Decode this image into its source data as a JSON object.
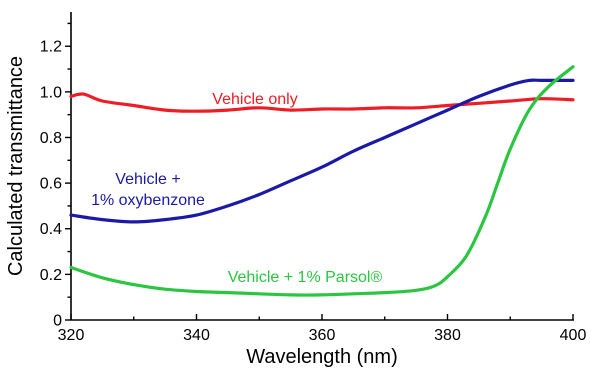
{
  "chart_data": {
    "type": "line",
    "title": "",
    "xlabel": "Wavelength (nm)",
    "ylabel": "Calculated transmittance",
    "xlim": [
      320,
      400
    ],
    "ylim": [
      0,
      1.35
    ],
    "x_ticks": [
      320,
      340,
      360,
      380,
      400
    ],
    "y_ticks": [
      0,
      0.2,
      0.4,
      0.6,
      0.8,
      1.0,
      1.2
    ],
    "x_tick_labels": [
      "320",
      "340",
      "360",
      "380",
      "400"
    ],
    "y_tick_labels": [
      "0",
      "0.2",
      "0.4",
      "0.6",
      "0.8",
      "1.0",
      "1.2"
    ],
    "grid": false,
    "legend": "none",
    "series": [
      {
        "label_lines": [
          "Vehicle only"
        ],
        "color": "#ee1c24",
        "x": [
          320,
          322,
          325,
          330,
          335,
          340,
          345,
          350,
          355,
          360,
          365,
          370,
          375,
          380,
          385,
          390,
          395,
          400
        ],
        "y": [
          0.98,
          0.99,
          0.96,
          0.94,
          0.92,
          0.915,
          0.92,
          0.93,
          0.92,
          0.925,
          0.925,
          0.93,
          0.93,
          0.94,
          0.95,
          0.96,
          0.97,
          0.965
        ]
      },
      {
        "label_lines": [
          "Vehicle +",
          "1% oxybenzone"
        ],
        "color": "#1a1aa6",
        "x": [
          320,
          325,
          330,
          335,
          340,
          345,
          350,
          355,
          360,
          365,
          370,
          375,
          380,
          385,
          390,
          393,
          395,
          400
        ],
        "y": [
          0.46,
          0.44,
          0.43,
          0.44,
          0.46,
          0.5,
          0.55,
          0.61,
          0.67,
          0.74,
          0.8,
          0.86,
          0.92,
          0.98,
          1.03,
          1.05,
          1.05,
          1.05
        ]
      },
      {
        "label_lines": [
          "Vehicle + 1% Parsol®"
        ],
        "color": "#2bc640",
        "x": [
          320,
          325,
          330,
          335,
          340,
          345,
          350,
          355,
          360,
          365,
          370,
          375,
          378,
          380,
          383,
          386,
          388,
          390,
          393,
          396,
          400
        ],
        "y": [
          0.23,
          0.185,
          0.155,
          0.135,
          0.125,
          0.12,
          0.115,
          0.11,
          0.11,
          0.115,
          0.12,
          0.13,
          0.15,
          0.19,
          0.28,
          0.45,
          0.6,
          0.75,
          0.92,
          1.02,
          1.11
        ]
      }
    ]
  }
}
